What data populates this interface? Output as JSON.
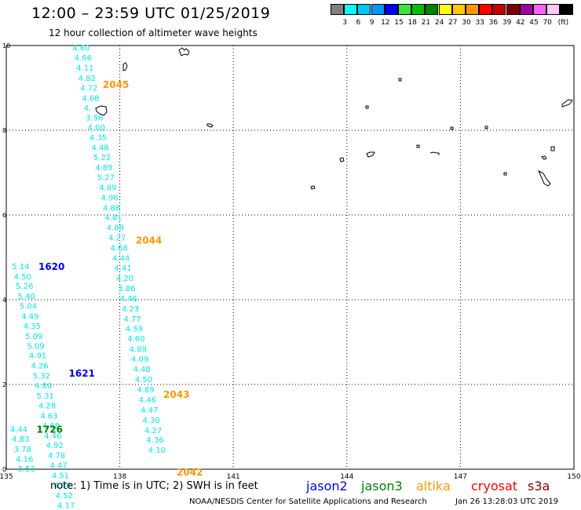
{
  "title": "12:00 – 23:59 UTC 01/25/2019",
  "subtitle": "12 hour collection of altimeter wave heights",
  "legend": {
    "unit": "(ft)",
    "swatches": [
      {
        "color": "#808080",
        "label": ""
      },
      {
        "color": "#00ffff",
        "label": "3"
      },
      {
        "color": "#00c8ff",
        "label": "6"
      },
      {
        "color": "#0096ff",
        "label": "9"
      },
      {
        "color": "#0000ff",
        "label": "12"
      },
      {
        "color": "#40e040",
        "label": "15"
      },
      {
        "color": "#00c000",
        "label": "18"
      },
      {
        "color": "#008000",
        "label": "21"
      },
      {
        "color": "#ffff00",
        "label": "24"
      },
      {
        "color": "#ffc800",
        "label": "27"
      },
      {
        "color": "#ff9600",
        "label": "30"
      },
      {
        "color": "#ff0000",
        "label": "33"
      },
      {
        "color": "#c80000",
        "label": "36"
      },
      {
        "color": "#800000",
        "label": "39"
      },
      {
        "color": "#a000a0",
        "label": "42"
      },
      {
        "color": "#ff60ff",
        "label": "45"
      },
      {
        "color": "#ffc8ff",
        "label": "70"
      },
      {
        "color": "#000000",
        "label": ""
      }
    ]
  },
  "map": {
    "lon_range": [
      135,
      150
    ],
    "lat_range": [
      0,
      10
    ],
    "lon_ticks": [
      "135",
      "138",
      "141",
      "144",
      "147",
      "150"
    ],
    "lat_ticks": [
      "0",
      "2",
      "4",
      "6",
      "8",
      "10"
    ],
    "grid": "dotted"
  },
  "satellites": [
    {
      "name": "jason2",
      "color": "#0000ff"
    },
    {
      "name": "jason3",
      "color": "#008000"
    },
    {
      "name": "altika",
      "color": "#ff9600"
    },
    {
      "name": "cryosat",
      "color": "#ff0000"
    },
    {
      "name": "s3a",
      "color": "#800000"
    }
  ],
  "tracks": [
    {
      "sat": "altika",
      "pass_label": "2045",
      "pass_lon": 137.55,
      "pass_lat": 9.09,
      "labels": [
        {
          "lon": 136.75,
          "lat": 9.95,
          "value": "4.60"
        },
        {
          "lon": 136.8,
          "lat": 9.72,
          "value": "4.66"
        },
        {
          "lon": 136.85,
          "lat": 9.48,
          "value": "4.11"
        },
        {
          "lon": 136.9,
          "lat": 9.24,
          "value": "4.82"
        },
        {
          "lon": 136.95,
          "lat": 9.01,
          "value": "4.72"
        },
        {
          "lon": 137.0,
          "lat": 8.77,
          "value": "4.68"
        },
        {
          "lon": 137.05,
          "lat": 8.54,
          "value": "4."
        },
        {
          "lon": 137.1,
          "lat": 8.31,
          "value": "3.96"
        },
        {
          "lon": 137.15,
          "lat": 8.07,
          "value": "4.00"
        },
        {
          "lon": 137.2,
          "lat": 7.84,
          "value": "4.35"
        },
        {
          "lon": 137.25,
          "lat": 7.6,
          "value": "4.48"
        },
        {
          "lon": 137.3,
          "lat": 7.37,
          "value": "5.22"
        },
        {
          "lon": 137.35,
          "lat": 7.13,
          "value": "4.89"
        },
        {
          "lon": 137.4,
          "lat": 6.9,
          "value": "5.27"
        },
        {
          "lon": 137.45,
          "lat": 6.66,
          "value": "4.89"
        },
        {
          "lon": 137.5,
          "lat": 6.42,
          "value": "4.96"
        },
        {
          "lon": 137.55,
          "lat": 6.18,
          "value": "4.88"
        },
        {
          "lon": 137.6,
          "lat": 5.95,
          "value": "4.81"
        }
      ]
    },
    {
      "sat": "altika",
      "pass_label": "2044",
      "pass_lon": 138.42,
      "pass_lat": 5.42,
      "labels": [
        {
          "lon": 137.65,
          "lat": 5.71,
          "value": "4.89"
        },
        {
          "lon": 137.7,
          "lat": 5.47,
          "value": "4.27"
        },
        {
          "lon": 137.75,
          "lat": 5.23,
          "value": "4.68"
        },
        {
          "lon": 137.8,
          "lat": 4.99,
          "value": "4.44"
        },
        {
          "lon": 137.85,
          "lat": 4.76,
          "value": "4.41"
        },
        {
          "lon": 137.9,
          "lat": 4.52,
          "value": "4.20"
        },
        {
          "lon": 137.95,
          "lat": 4.28,
          "value": "3.86"
        },
        {
          "lon": 138.0,
          "lat": 4.04,
          "value": "4.46"
        },
        {
          "lon": 138.05,
          "lat": 3.8,
          "value": "4.23"
        },
        {
          "lon": 138.1,
          "lat": 3.56,
          "value": "4.77"
        },
        {
          "lon": 138.15,
          "lat": 3.32,
          "value": "4.59"
        },
        {
          "lon": 138.2,
          "lat": 3.09,
          "value": "4.60"
        },
        {
          "lon": 138.25,
          "lat": 2.84,
          "value": "4.89"
        },
        {
          "lon": 138.3,
          "lat": 2.61,
          "value": "4.09"
        },
        {
          "lon": 138.35,
          "lat": 2.37,
          "value": "4.48"
        }
      ]
    },
    {
      "sat": "altika",
      "pass_label": "2043",
      "pass_lon": 139.15,
      "pass_lat": 1.78,
      "labels": [
        {
          "lon": 138.4,
          "lat": 2.13,
          "value": "4.50"
        },
        {
          "lon": 138.45,
          "lat": 1.89,
          "value": "4.89"
        },
        {
          "lon": 138.5,
          "lat": 1.65,
          "value": "4.46"
        },
        {
          "lon": 138.55,
          "lat": 1.41,
          "value": "4.47"
        },
        {
          "lon": 138.6,
          "lat": 1.17,
          "value": "4.30"
        },
        {
          "lon": 138.65,
          "lat": 0.93,
          "value": "4.27"
        },
        {
          "lon": 138.7,
          "lat": 0.7,
          "value": "4.36"
        },
        {
          "lon": 138.75,
          "lat": 0.46,
          "value": "4.10"
        }
      ]
    },
    {
      "sat": "altika",
      "pass_label": "2042",
      "pass_lon": 139.5,
      "pass_lat": -0.06,
      "labels": []
    },
    {
      "sat": "jason2",
      "pass_label": "1620",
      "pass_lon": 135.85,
      "pass_lat": 4.8,
      "labels": [
        {
          "lon": 135.15,
          "lat": 4.8,
          "value": "5.14"
        },
        {
          "lon": 135.2,
          "lat": 4.56,
          "value": "4.50"
        },
        {
          "lon": 135.25,
          "lat": 4.33,
          "value": "5.26"
        },
        {
          "lon": 135.3,
          "lat": 4.09,
          "value": "5.40"
        },
        {
          "lon": 135.35,
          "lat": 3.86,
          "value": "5.04"
        },
        {
          "lon": 135.4,
          "lat": 3.62,
          "value": "4.49"
        },
        {
          "lon": 135.45,
          "lat": 3.39,
          "value": "4.35"
        },
        {
          "lon": 135.5,
          "lat": 3.15,
          "value": "5.09"
        },
        {
          "lon": 135.55,
          "lat": 2.92,
          "value": "5.09"
        },
        {
          "lon": 135.6,
          "lat": 2.69,
          "value": "4.91"
        },
        {
          "lon": 135.65,
          "lat": 2.45,
          "value": "4.26"
        },
        {
          "lon": 135.7,
          "lat": 2.21,
          "value": "5.32"
        },
        {
          "lon": 135.75,
          "lat": 1.98,
          "value": "4.80"
        }
      ]
    },
    {
      "sat": "jason2",
      "pass_label": "1621",
      "pass_lon": 136.65,
      "pass_lat": 2.28,
      "labels": [
        {
          "lon": 135.8,
          "lat": 1.74,
          "value": "5.31"
        },
        {
          "lon": 135.85,
          "lat": 1.51,
          "value": "4.28"
        },
        {
          "lon": 135.9,
          "lat": 1.27,
          "value": "4.63"
        },
        {
          "lon": 135.95,
          "lat": 1.04,
          "value": "4.68"
        },
        {
          "lon": 136.0,
          "lat": 0.8,
          "value": "4.46"
        },
        {
          "lon": 136.05,
          "lat": 0.57,
          "value": "4.92"
        },
        {
          "lon": 136.1,
          "lat": 0.33,
          "value": "4.78"
        },
        {
          "lon": 136.15,
          "lat": 0.1,
          "value": "4.47"
        },
        {
          "lon": 136.2,
          "lat": -0.14,
          "value": "4.51"
        },
        {
          "lon": 136.25,
          "lat": -0.37,
          "value": "4.89"
        },
        {
          "lon": 136.3,
          "lat": -0.61,
          "value": "4.52"
        },
        {
          "lon": 136.35,
          "lat": -0.84,
          "value": "4.17"
        }
      ]
    },
    {
      "sat": "jason3",
      "pass_label": "1726",
      "pass_lon": 135.8,
      "pass_lat": 0.95,
      "labels": [
        {
          "lon": 135.1,
          "lat": 0.95,
          "value": "4.44"
        },
        {
          "lon": 135.15,
          "lat": 0.72,
          "value": "4.83"
        },
        {
          "lon": 135.2,
          "lat": 0.48,
          "value": "3.78"
        },
        {
          "lon": 135.25,
          "lat": 0.25,
          "value": "4.16"
        },
        {
          "lon": 135.3,
          "lat": 0.02,
          "value": "3.53"
        }
      ]
    }
  ],
  "note": "note: 1) Time is in UTC; 2) SWH is in feet",
  "credit": "NOAA/NESDIS Center for Satellite Applications and Research",
  "timestamp": "Jan 26 13:28:03 UTC 2019"
}
